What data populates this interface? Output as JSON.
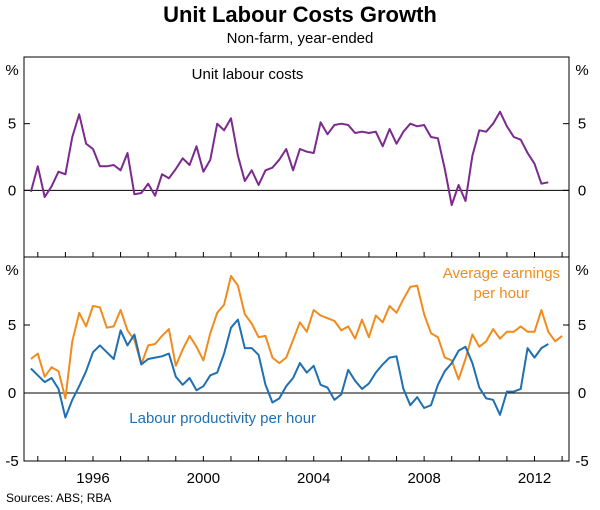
{
  "header": {
    "title": "Unit Labour Costs Growth",
    "subtitle": "Non-farm, year-ended",
    "source": "Sources: ABS; RBA"
  },
  "colors": {
    "unit_labour_costs": "#7B2A8E",
    "average_earnings": "#F08C1E",
    "labour_productivity": "#1F6FB2",
    "axis": "#000000"
  },
  "chart_data": [
    {
      "type": "line",
      "title": "Unit labour costs",
      "unit_label": "%",
      "ylim": [
        -5,
        10
      ],
      "yticks": [
        0,
        5
      ],
      "grid": false,
      "x_range": [
        1993.5,
        2013.25
      ],
      "xticks": [
        1996,
        2000,
        2004,
        2008,
        2012
      ],
      "x_start": 1993.75,
      "x_step": 0.25,
      "series": [
        {
          "name": "Unit labour costs",
          "color_key": "unit_labour_costs",
          "values": [
            -0.1,
            1.8,
            -0.5,
            0.3,
            1.4,
            1.2,
            4.0,
            5.7,
            3.5,
            3.1,
            1.8,
            1.8,
            1.9,
            1.5,
            2.8,
            -0.3,
            -0.2,
            0.5,
            -0.4,
            1.2,
            0.9,
            1.6,
            2.4,
            1.9,
            3.3,
            1.4,
            2.3,
            5.0,
            4.5,
            5.4,
            2.6,
            0.7,
            1.5,
            0.4,
            1.5,
            1.7,
            2.3,
            3.1,
            1.5,
            3.1,
            2.9,
            2.8,
            5.1,
            4.2,
            4.9,
            5.0,
            4.9,
            4.3,
            4.4,
            4.3,
            4.4,
            3.3,
            4.6,
            3.5,
            4.4,
            5.0,
            4.8,
            4.9,
            4.0,
            3.9,
            1.6,
            -1.1,
            0.4,
            -0.8,
            2.6,
            4.5,
            4.4,
            5.0,
            5.9,
            4.8,
            4.0,
            3.8,
            2.8,
            2.0,
            0.5,
            0.6
          ]
        }
      ]
    },
    {
      "type": "line",
      "title": "",
      "unit_label": "%",
      "ylim": [
        -5,
        10
      ],
      "yticks": [
        -5,
        0,
        5
      ],
      "grid": false,
      "x_range": [
        1993.5,
        2013.25
      ],
      "xticks": [
        1996,
        2000,
        2004,
        2008,
        2012
      ],
      "x_start": 1993.75,
      "x_step": 0.25,
      "series": [
        {
          "name": "Average earnings per hour",
          "label_lines": [
            "Average earnings",
            "per hour"
          ],
          "color_key": "average_earnings",
          "values": [
            2.5,
            2.9,
            1.2,
            1.9,
            1.6,
            -0.4,
            3.8,
            5.9,
            4.9,
            6.4,
            6.3,
            4.8,
            4.9,
            6.1,
            4.6,
            3.9,
            2.1,
            3.5,
            3.6,
            4.2,
            4.7,
            2.0,
            3.2,
            4.2,
            3.4,
            2.4,
            4.4,
            5.9,
            6.5,
            8.6,
            7.9,
            5.8,
            5.1,
            4.1,
            4.2,
            2.6,
            2.2,
            2.6,
            3.9,
            5.2,
            4.5,
            6.1,
            5.7,
            5.5,
            5.3,
            4.6,
            4.9,
            4.0,
            5.4,
            4.1,
            5.7,
            5.2,
            6.4,
            5.9,
            6.9,
            7.8,
            7.9,
            5.8,
            4.4,
            4.1,
            2.6,
            2.4,
            1.0,
            2.5,
            4.3,
            3.4,
            3.8,
            4.7,
            4.0,
            4.5,
            4.5,
            4.9,
            4.5,
            4.5,
            6.1,
            4.5,
            3.8,
            4.2
          ]
        },
        {
          "name": "Labour productivity per hour",
          "color_key": "labour_productivity",
          "values": [
            1.8,
            1.3,
            0.8,
            1.1,
            0.3,
            -1.8,
            -0.5,
            0.5,
            1.6,
            3.0,
            3.5,
            3.0,
            2.5,
            4.6,
            3.5,
            4.3,
            2.1,
            2.5,
            2.6,
            2.7,
            2.9,
            1.2,
            0.6,
            1.1,
            0.2,
            0.5,
            1.3,
            1.5,
            2.9,
            4.8,
            5.4,
            3.3,
            3.3,
            2.8,
            0.6,
            -0.7,
            -0.4,
            0.5,
            1.1,
            2.2,
            1.5,
            2.0,
            0.6,
            0.4,
            -0.5,
            -0.1,
            1.7,
            0.9,
            0.3,
            0.7,
            1.5,
            2.1,
            2.6,
            2.7,
            0.3,
            -0.9,
            -0.3,
            -1.1,
            -0.9,
            0.6,
            1.6,
            2.2,
            3.1,
            3.4,
            2.2,
            0.4,
            -0.4,
            -0.5,
            -1.6,
            0.1,
            0.1,
            0.3,
            3.3,
            2.6,
            3.3,
            3.6
          ]
        }
      ]
    }
  ]
}
